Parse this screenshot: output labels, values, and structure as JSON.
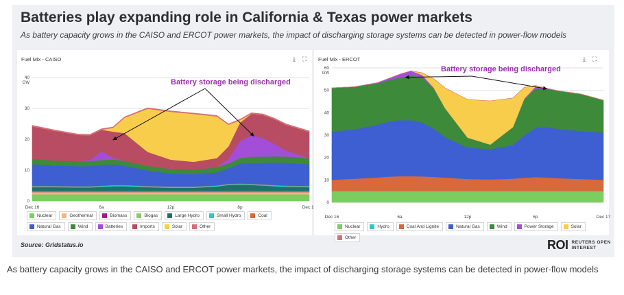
{
  "headline": "Batteries play expanding role in California & Texas power markets",
  "subhead": "As battery capacity grows in the CAISO and ERCOT power markets, the impact of discharging storage systems can be detected in power-flow models",
  "source": "Source: Gridstatus.io",
  "logo": {
    "word": "ROI",
    "sub": "REUTERS OPEN INTEREST"
  },
  "caption": "As battery capacity grows in the CAISO and ERCOT power markets, the impact of discharging storage systems can be detected in power-flow models",
  "icons": {
    "download": "download-icon",
    "expand": "expand-icon"
  },
  "chart_data": [
    {
      "type": "area",
      "title": "Fuel Mix - CAISO",
      "ylabel": "GW",
      "ylim": [
        0,
        40
      ],
      "yticks": [
        "40",
        "30",
        "20",
        "10",
        "0"
      ],
      "xlabels": [
        "Dec 16",
        "6a",
        "12p",
        "6p",
        "Dec 17"
      ],
      "annotation": "Battery storage being discharged",
      "x": [
        0,
        2,
        4,
        5,
        6,
        7,
        8,
        10,
        12,
        14,
        16,
        17,
        18,
        19,
        20,
        21,
        22,
        24
      ],
      "series": [
        {
          "name": "Nuclear",
          "color": "#7ccd60",
          "values": [
            2.2,
            2.2,
            2.2,
            2.2,
            2.2,
            2.2,
            2.2,
            2.2,
            2.2,
            2.2,
            2.2,
            2.2,
            2.2,
            2.2,
            2.2,
            2.2,
            2.2,
            2.2
          ]
        },
        {
          "name": "Geothermal",
          "color": "#f3b48a",
          "values": [
            0.7,
            0.7,
            0.7,
            0.7,
            0.7,
            0.7,
            0.7,
            0.7,
            0.7,
            0.7,
            0.7,
            0.7,
            0.7,
            0.7,
            0.7,
            0.7,
            0.7,
            0.7
          ]
        },
        {
          "name": "Biomass",
          "color": "#a31c87",
          "values": [
            0.2,
            0.2,
            0.2,
            0.2,
            0.2,
            0.2,
            0.2,
            0.2,
            0.2,
            0.2,
            0.2,
            0.2,
            0.2,
            0.2,
            0.2,
            0.2,
            0.2,
            0.2
          ]
        },
        {
          "name": "Biogas",
          "color": "#8dc96c",
          "values": [
            0.2,
            0.2,
            0.2,
            0.2,
            0.2,
            0.2,
            0.2,
            0.2,
            0.2,
            0.2,
            0.2,
            0.2,
            0.2,
            0.2,
            0.2,
            0.2,
            0.2,
            0.2
          ]
        },
        {
          "name": "Large Hydro",
          "color": "#1f6f6b",
          "values": [
            1.2,
            1.2,
            1.1,
            1.1,
            1.3,
            1.5,
            1.5,
            1.2,
            1.0,
            1.0,
            1.4,
            1.9,
            2.0,
            1.9,
            1.7,
            1.5,
            1.3,
            1.2
          ]
        },
        {
          "name": "Small Hydro",
          "color": "#2ec9c2",
          "values": [
            0.3,
            0.3,
            0.3,
            0.3,
            0.3,
            0.3,
            0.3,
            0.3,
            0.3,
            0.3,
            0.3,
            0.3,
            0.3,
            0.3,
            0.3,
            0.3,
            0.3,
            0.3
          ]
        },
        {
          "name": "Coal",
          "color": "#d9683a",
          "values": [
            0.1,
            0.1,
            0.1,
            0.1,
            0.1,
            0.1,
            0.1,
            0.1,
            0.1,
            0.1,
            0.1,
            0.1,
            0.1,
            0.1,
            0.1,
            0.1,
            0.1,
            0.1
          ]
        },
        {
          "name": "Natural Gas",
          "color": "#3e5fd1",
          "values": [
            7.0,
            6.6,
            6.5,
            6.5,
            6.7,
            6.7,
            6.2,
            5.0,
            4.2,
            4.0,
            4.2,
            5.0,
            6.4,
            6.8,
            7.0,
            7.3,
            7.4,
            7.0
          ]
        },
        {
          "name": "Wind",
          "color": "#3d8a3a",
          "values": [
            1.8,
            1.6,
            1.6,
            1.6,
            1.6,
            1.6,
            1.6,
            1.5,
            1.5,
            1.5,
            1.6,
            1.6,
            1.8,
            1.9,
            2.0,
            2.0,
            2.0,
            2.0
          ]
        },
        {
          "name": "Batteries",
          "color": "#a34ed8",
          "values": [
            0.0,
            0.0,
            0.0,
            0.4,
            2.8,
            0.5,
            0.0,
            0.0,
            0.0,
            0.0,
            0.0,
            1.5,
            5.5,
            7.0,
            6.0,
            4.0,
            2.0,
            0.0
          ]
        },
        {
          "name": "Imports",
          "color": "#b84c62",
          "values": [
            10.5,
            9.6,
            8.5,
            8.0,
            7.0,
            8.5,
            9.0,
            4.5,
            3.0,
            2.5,
            3.0,
            4.0,
            6.0,
            7.0,
            7.5,
            8.0,
            8.3,
            8.5
          ]
        },
        {
          "name": "Solar",
          "color": "#f8cd4b",
          "values": [
            0.0,
            0.0,
            0.0,
            0.0,
            0.0,
            1.2,
            5.0,
            14.0,
            15.5,
            15.5,
            13.5,
            7.0,
            0.8,
            0.0,
            0.0,
            0.0,
            0.0,
            0.0
          ]
        },
        {
          "name": "Other",
          "color": "#d66f7a",
          "values": [
            0.3,
            0.3,
            0.3,
            0.3,
            0.3,
            0.3,
            0.3,
            0.3,
            0.3,
            0.3,
            0.3,
            0.3,
            0.3,
            0.3,
            0.3,
            0.3,
            0.3,
            0.3
          ]
        }
      ],
      "legend_order": [
        "Nuclear",
        "Geothermal",
        "Biomass",
        "Biogas",
        "Large Hydro",
        "Small Hydro",
        "Coal",
        "Natural Gas",
        "Wind",
        "Batteries",
        "Imports",
        "Solar",
        "Other"
      ]
    },
    {
      "type": "area",
      "title": "Fuel Mix - ERCOT",
      "ylabel": "GW",
      "ylim": [
        0,
        60
      ],
      "yticks": [
        "60",
        "50",
        "40",
        "30",
        "20",
        "10",
        "0"
      ],
      "xlabels": [
        "Dec 16",
        "6a",
        "12p",
        "6p",
        "Dec 17"
      ],
      "annotation": "Battery storage being discharged",
      "x": [
        0,
        2,
        4,
        5,
        6,
        7,
        8,
        9,
        10,
        12,
        14,
        16,
        17,
        18,
        19,
        20,
        22,
        24
      ],
      "series": [
        {
          "name": "Nuclear",
          "color": "#7ccd60",
          "values": [
            5.0,
            5.0,
            5.0,
            5.0,
            5.0,
            5.0,
            5.0,
            5.0,
            5.0,
            5.0,
            5.0,
            5.0,
            5.0,
            5.0,
            5.0,
            5.0,
            5.0,
            5.0
          ]
        },
        {
          "name": "Hydro",
          "color": "#2ec9c2",
          "values": [
            0.1,
            0.1,
            0.1,
            0.1,
            0.1,
            0.1,
            0.1,
            0.1,
            0.1,
            0.1,
            0.1,
            0.1,
            0.1,
            0.1,
            0.1,
            0.1,
            0.1,
            0.1
          ]
        },
        {
          "name": "Coal And Lignite",
          "color": "#d9683a",
          "values": [
            5.0,
            5.5,
            6.0,
            6.4,
            6.6,
            6.6,
            6.5,
            6.3,
            6.0,
            5.3,
            5.2,
            5.5,
            5.9,
            6.2,
            6.0,
            5.7,
            5.3,
            5.0
          ]
        },
        {
          "name": "Natural Gas",
          "color": "#3e5fd1",
          "values": [
            21.5,
            22.0,
            23.5,
            24.5,
            25.0,
            25.0,
            24.0,
            21.5,
            18.0,
            14.0,
            13.5,
            15.0,
            19.0,
            22.0,
            22.5,
            22.0,
            21.5,
            21.0
          ]
        },
        {
          "name": "Wind",
          "color": "#3d8a3a",
          "values": [
            19.5,
            19.0,
            18.5,
            18.5,
            19.0,
            20.0,
            20.0,
            18.0,
            13.0,
            4.5,
            2.0,
            8.0,
            16.0,
            17.5,
            17.0,
            17.0,
            16.5,
            14.5
          ]
        },
        {
          "name": "Power Storage",
          "color": "#a34ed8",
          "values": [
            0.0,
            0.0,
            0.3,
            0.8,
            1.5,
            2.0,
            1.2,
            0.3,
            0.0,
            0.0,
            0.0,
            0.0,
            0.3,
            0.9,
            0.3,
            0.0,
            0.0,
            0.0
          ]
        },
        {
          "name": "Solar",
          "color": "#f8cd4b",
          "values": [
            0.0,
            0.0,
            0.0,
            0.0,
            0.0,
            0.0,
            1.0,
            4.0,
            9.0,
            17.0,
            19.5,
            13.0,
            5.0,
            0.5,
            0.0,
            0.0,
            0.0,
            0.0
          ]
        },
        {
          "name": "Other",
          "color": "#d66f7a",
          "values": [
            0.0,
            0.0,
            0.0,
            0.0,
            0.0,
            0.0,
            0.0,
            0.0,
            0.0,
            0.0,
            0.0,
            0.0,
            0.0,
            0.0,
            0.0,
            0.0,
            0.0,
            0.0
          ]
        }
      ],
      "legend_order": [
        "Nuclear",
        "Hydro",
        "Coal And Lignite",
        "Natural Gas",
        "Wind",
        "Power Storage",
        "Solar",
        "Other"
      ]
    }
  ]
}
